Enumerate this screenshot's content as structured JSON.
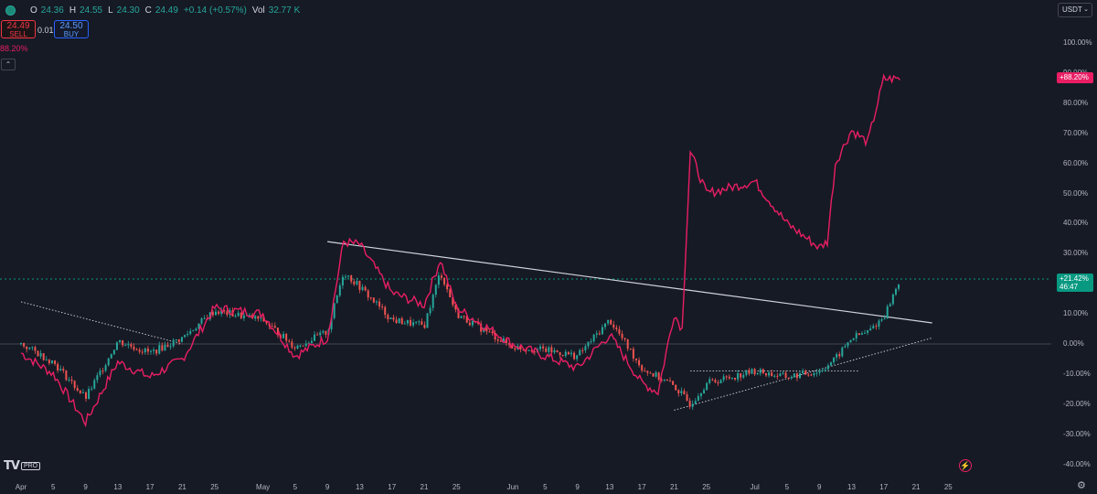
{
  "legend": {
    "open_label": "O",
    "open": "24.36",
    "high_label": "H",
    "high": "24.55",
    "low_label": "L",
    "low": "24.30",
    "close_label": "C",
    "close": "24.49",
    "change": "+0.14 (+0.57%)",
    "vol_label": "Vol",
    "volume": "32.77 K"
  },
  "trade": {
    "sell_price": "24.49",
    "sell_label": "SELL",
    "spread": "0.01",
    "buy_price": "24.50",
    "buy_label": "BUY"
  },
  "compare_percent": "88.20%",
  "collapse_icon": "chevron-up-icon",
  "currency": "USDT",
  "price_scale_ticks": [
    "100.00%",
    "90.00%",
    "80.00%",
    "70.00%",
    "60.00%",
    "50.00%",
    "40.00%",
    "30.00%",
    "20.00%",
    "10.00%",
    "0.00%",
    "-10.00%",
    "-20.00%",
    "-30.00%",
    "-40.00%"
  ],
  "time_ticks": [
    "Apr",
    "5",
    "9",
    "13",
    "17",
    "21",
    "25",
    "May",
    "5",
    "9",
    "13",
    "17",
    "21",
    "25",
    "Jun",
    "5",
    "9",
    "13",
    "17",
    "21",
    "25",
    "Jul",
    "5",
    "9",
    "13",
    "17",
    "21",
    "25"
  ],
  "tags": {
    "compare_value": "+88.20%",
    "main_value": "+21.42%",
    "countdown": "46:47"
  },
  "logo": {
    "mark": "TV",
    "badge": "PRO"
  },
  "colors": {
    "background": "#161a25",
    "candle_up": "#26a69a",
    "candle_down": "#ef5350",
    "compare_line": "#e91e63",
    "trendline": "#d1d4dc",
    "grid_zero": "#434651"
  },
  "chart_data": {
    "type": "line",
    "ylim": [
      -40,
      100
    ],
    "x_range": [
      "Apr 1",
      "Jul 27"
    ],
    "series": [
      {
        "x": [
          "Apr 1",
          "Apr 5",
          "Apr 9",
          "Apr 13",
          "Apr 17",
          "Apr 21",
          "Apr 25",
          "May 1",
          "May 5",
          "May 9",
          "May 11",
          "May 13",
          "May 17",
          "May 21",
          "May 23",
          "May 25",
          "Jun 1",
          "Jun 5",
          "Jun 9",
          "Jun 13",
          "Jun 17",
          "Jun 19",
          "Jun 21",
          "Jun 23",
          "Jun 25",
          "Jul 1",
          "Jul 5",
          "Jul 9",
          "Jul 11",
          "Jul 13",
          "Jul 15",
          "Jul 17",
          "Jul 19"
        ],
        "values": [
          0,
          -6,
          -18,
          1,
          -3,
          2,
          11,
          8,
          -1,
          4,
          24,
          19,
          8,
          6,
          24,
          10,
          -1,
          -2,
          -4,
          8,
          -8,
          -11,
          -14,
          -20,
          -13,
          -9,
          -11,
          -9,
          -5,
          2,
          4,
          9,
          21.4
        ]
      },
      {
        "x": [
          "Apr 1",
          "Apr 5",
          "Apr 9",
          "Apr 13",
          "Apr 17",
          "Apr 21",
          "Apr 25",
          "May 1",
          "May 5",
          "May 9",
          "May 11",
          "May 13",
          "May 17",
          "May 21",
          "May 23",
          "May 25",
          "Jun 1",
          "Jun 5",
          "Jun 9",
          "Jun 13",
          "Jun 17",
          "Jun 19",
          "Jun 21",
          "Jun 22",
          "Jun 23",
          "Jun 25",
          "Jul 1",
          "Jul 5",
          "Jul 9",
          "Jul 10",
          "Jul 11",
          "Jul 13",
          "Jul 15",
          "Jul 17",
          "Jul 19"
        ],
        "values": [
          -3,
          -10,
          -26,
          -6,
          -11,
          -5,
          12,
          10,
          -4,
          2,
          34,
          33,
          17,
          13,
          28,
          12,
          0,
          -4,
          -8,
          3,
          -13,
          -16,
          10,
          5,
          64,
          50,
          54,
          40,
          32,
          34,
          60,
          71,
          67,
          88,
          88.2
        ]
      }
    ],
    "annotations": [
      {
        "type": "trendline",
        "from": [
          "Apr 1",
          14
        ],
        "to": [
          "Apr 21",
          0
        ]
      },
      {
        "type": "trendline",
        "from": [
          "May 9",
          34
        ],
        "to": [
          "Jul 23",
          7
        ]
      },
      {
        "type": "trendline",
        "from": [
          "Jun 21",
          -22
        ],
        "to": [
          "Jul 23",
          2
        ]
      },
      {
        "type": "trendline",
        "from": [
          "Jun 23",
          -9
        ],
        "to": [
          "Jul 14",
          -9
        ]
      }
    ],
    "reference_lines": [
      0,
      21.42
    ]
  }
}
